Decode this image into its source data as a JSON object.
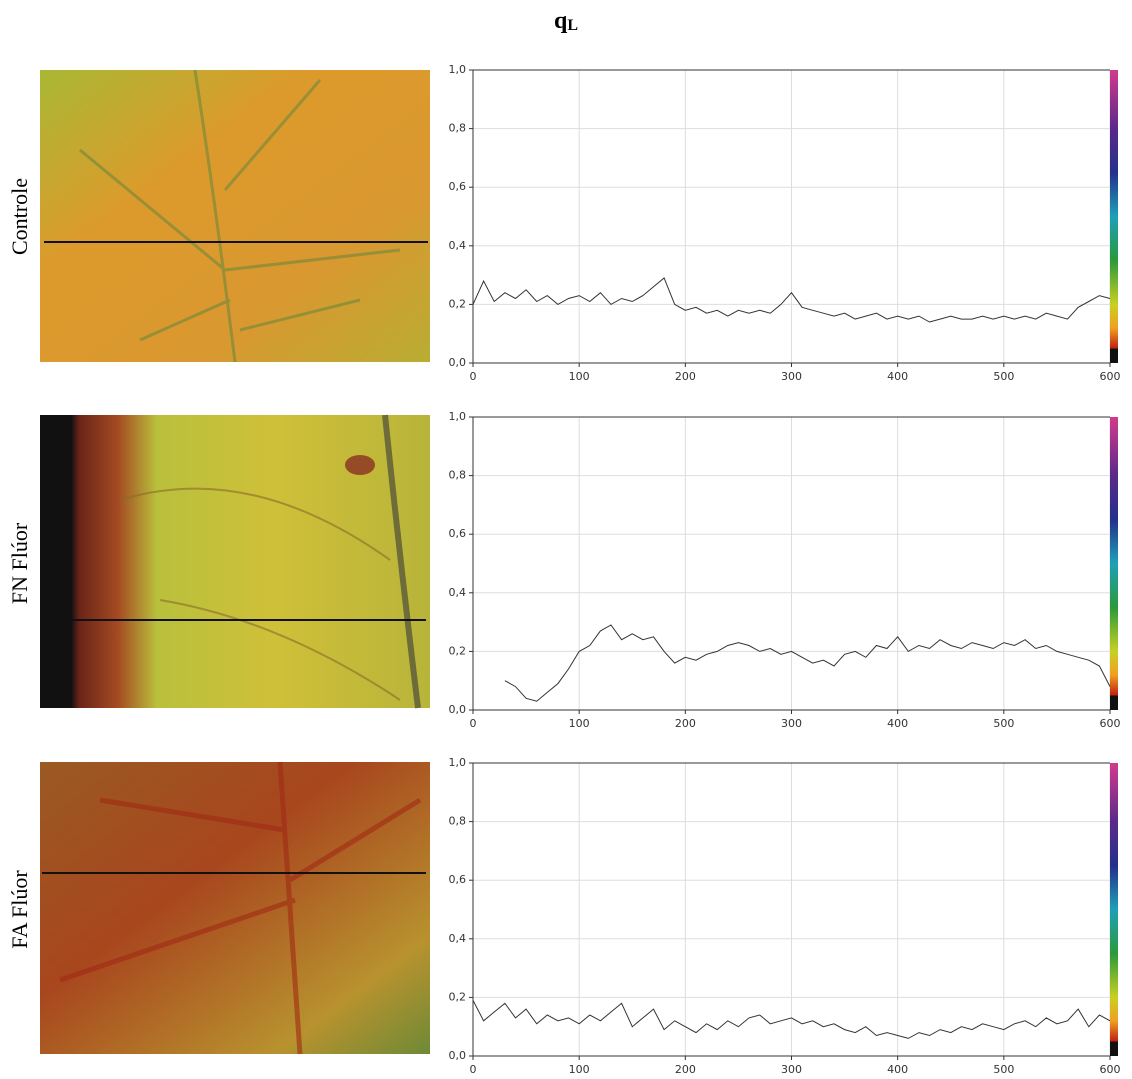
{
  "title": "q",
  "title_subscript": "L",
  "chart_data": [
    {
      "type": "line",
      "row_label": "Controle",
      "color": "#333333",
      "grid": true,
      "xlim": [
        0,
        600
      ],
      "xticks": [
        0,
        100,
        200,
        300,
        400,
        500,
        600
      ],
      "ylim": [
        0,
        1
      ],
      "yticks": [
        {
          "value": 0,
          "label": "0,0"
        },
        {
          "value": 0.2,
          "label": "0,2"
        },
        {
          "value": 0.4,
          "label": "0,4"
        },
        {
          "value": 0.6,
          "label": "0,6"
        },
        {
          "value": 0.8,
          "label": "0,8"
        },
        {
          "value": 1,
          "label": "1,0"
        }
      ],
      "x": [
        0,
        10,
        20,
        30,
        40,
        50,
        60,
        70,
        80,
        90,
        100,
        110,
        120,
        130,
        140,
        150,
        160,
        170,
        180,
        190,
        200,
        210,
        220,
        230,
        240,
        250,
        260,
        270,
        280,
        290,
        300,
        310,
        320,
        330,
        340,
        350,
        360,
        370,
        380,
        390,
        400,
        410,
        420,
        430,
        440,
        450,
        460,
        470,
        480,
        490,
        500,
        510,
        520,
        530,
        540,
        550,
        560,
        570,
        580,
        590,
        600
      ],
      "values": [
        0.2,
        0.28,
        0.21,
        0.24,
        0.22,
        0.25,
        0.21,
        0.23,
        0.2,
        0.22,
        0.23,
        0.21,
        0.24,
        0.2,
        0.22,
        0.21,
        0.23,
        0.26,
        0.29,
        0.2,
        0.18,
        0.19,
        0.17,
        0.18,
        0.16,
        0.18,
        0.17,
        0.18,
        0.17,
        0.2,
        0.24,
        0.19,
        0.18,
        0.17,
        0.16,
        0.17,
        0.15,
        0.16,
        0.17,
        0.15,
        0.16,
        0.15,
        0.16,
        0.14,
        0.15,
        0.16,
        0.15,
        0.15,
        0.16,
        0.15,
        0.16,
        0.15,
        0.16,
        0.15,
        0.17,
        0.16,
        0.15,
        0.19,
        0.21,
        0.23,
        0.22
      ]
    },
    {
      "type": "line",
      "row_label": "FN Flúor",
      "color": "#333333",
      "grid": true,
      "xlim": [
        0,
        600
      ],
      "xticks": [
        0,
        100,
        200,
        300,
        400,
        500,
        600
      ],
      "ylim": [
        0,
        1
      ],
      "yticks": [
        {
          "value": 0,
          "label": "0,0"
        },
        {
          "value": 0.2,
          "label": "0,2"
        },
        {
          "value": 0.4,
          "label": "0,4"
        },
        {
          "value": 0.6,
          "label": "0,6"
        },
        {
          "value": 0.8,
          "label": "0,8"
        },
        {
          "value": 1,
          "label": "1,0"
        }
      ],
      "x": [
        0,
        10,
        20,
        30,
        40,
        50,
        60,
        70,
        80,
        90,
        100,
        110,
        120,
        130,
        140,
        150,
        160,
        170,
        180,
        190,
        200,
        210,
        220,
        230,
        240,
        250,
        260,
        270,
        280,
        290,
        300,
        310,
        320,
        330,
        340,
        350,
        360,
        370,
        380,
        390,
        400,
        410,
        420,
        430,
        440,
        450,
        460,
        470,
        480,
        490,
        500,
        510,
        520,
        530,
        540,
        550,
        560,
        570,
        580,
        590,
        600
      ],
      "values": [
        null,
        null,
        null,
        0.1,
        0.08,
        0.04,
        0.03,
        0.06,
        0.09,
        0.14,
        0.2,
        0.22,
        0.27,
        0.29,
        0.24,
        0.26,
        0.24,
        0.25,
        0.2,
        0.16,
        0.18,
        0.17,
        0.19,
        0.2,
        0.22,
        0.23,
        0.22,
        0.2,
        0.21,
        0.19,
        0.2,
        0.18,
        0.16,
        0.17,
        0.15,
        0.19,
        0.2,
        0.18,
        0.22,
        0.21,
        0.25,
        0.2,
        0.22,
        0.21,
        0.24,
        0.22,
        0.21,
        0.23,
        0.22,
        0.21,
        0.23,
        0.22,
        0.24,
        0.21,
        0.22,
        0.2,
        0.19,
        0.18,
        0.17,
        0.15,
        0.08
      ]
    },
    {
      "type": "line",
      "row_label": "FA Flúor",
      "color": "#333333",
      "grid": true,
      "xlim": [
        0,
        600
      ],
      "xticks": [
        0,
        100,
        200,
        300,
        400,
        500,
        600
      ],
      "ylim": [
        0,
        1
      ],
      "yticks": [
        {
          "value": 0,
          "label": "0,0"
        },
        {
          "value": 0.2,
          "label": "0,2"
        },
        {
          "value": 0.4,
          "label": "0,4"
        },
        {
          "value": 0.6,
          "label": "0,6"
        },
        {
          "value": 0.8,
          "label": "0,8"
        },
        {
          "value": 1,
          "label": "1,0"
        }
      ],
      "x": [
        0,
        10,
        20,
        30,
        40,
        50,
        60,
        70,
        80,
        90,
        100,
        110,
        120,
        130,
        140,
        150,
        160,
        170,
        180,
        190,
        200,
        210,
        220,
        230,
        240,
        250,
        260,
        270,
        280,
        290,
        300,
        310,
        320,
        330,
        340,
        350,
        360,
        370,
        380,
        390,
        400,
        410,
        420,
        430,
        440,
        450,
        460,
        470,
        480,
        490,
        500,
        510,
        520,
        530,
        540,
        550,
        560,
        570,
        580,
        590,
        600
      ],
      "values": [
        0.19,
        0.12,
        0.15,
        0.18,
        0.13,
        0.16,
        0.11,
        0.14,
        0.12,
        0.13,
        0.11,
        0.14,
        0.12,
        0.15,
        0.18,
        0.1,
        0.13,
        0.16,
        0.09,
        0.12,
        0.1,
        0.08,
        0.11,
        0.09,
        0.12,
        0.1,
        0.13,
        0.14,
        0.11,
        0.12,
        0.13,
        0.11,
        0.12,
        0.1,
        0.11,
        0.09,
        0.08,
        0.1,
        0.07,
        0.08,
        0.07,
        0.06,
        0.08,
        0.07,
        0.09,
        0.08,
        0.1,
        0.09,
        0.11,
        0.1,
        0.09,
        0.11,
        0.12,
        0.1,
        0.13,
        0.11,
        0.12,
        0.16,
        0.1,
        0.14,
        0.12
      ]
    }
  ]
}
